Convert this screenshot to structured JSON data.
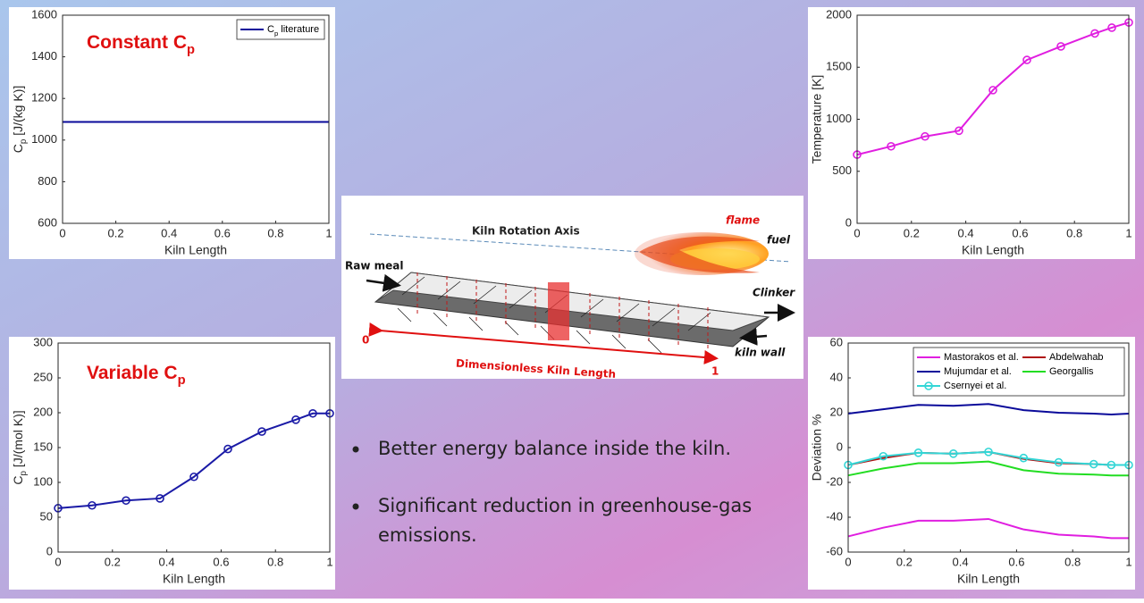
{
  "chart_data": [
    {
      "type": "line",
      "annotation": [
        "Constant C",
        "p"
      ],
      "xlabel": "Kiln Length",
      "ylabel": [
        "C",
        "p",
        " [J/(kg K)]"
      ],
      "x": [
        0,
        1
      ],
      "xlim": [
        0,
        1
      ],
      "xticks": [
        0,
        0.2,
        0.4,
        0.6,
        0.8,
        1
      ],
      "ylim": [
        600,
        1600
      ],
      "yticks": [
        600,
        800,
        1000,
        1200,
        1400,
        1600
      ],
      "legend": "northeast",
      "legend_columns": 1,
      "series": [
        {
          "name": [
            "C",
            "p",
            " literature"
          ],
          "color": "#0a0a9a",
          "marker": false,
          "values": [
            1087,
            1087
          ]
        }
      ]
    },
    {
      "type": "line",
      "xlabel": "Kiln Length",
      "ylabel": "Temperature [K]",
      "x": [
        0,
        0.125,
        0.25,
        0.375,
        0.5,
        0.625,
        0.75,
        0.875,
        0.9375,
        1
      ],
      "xlim": [
        0,
        1
      ],
      "xticks": [
        0,
        0.2,
        0.4,
        0.6,
        0.8,
        1
      ],
      "ylim": [
        0,
        2000
      ],
      "yticks": [
        0,
        500,
        1000,
        1500,
        2000
      ],
      "series": [
        {
          "color": "#e01ee0",
          "marker": true,
          "values": [
            660,
            740,
            835,
            890,
            1280,
            1570,
            1700,
            1825,
            1880,
            1930
          ]
        }
      ]
    },
    {
      "type": "line",
      "annotation": [
        "Variable C",
        "p"
      ],
      "xlabel": "Kiln Length",
      "ylabel": [
        "C",
        "p",
        " [J/(mol K)]"
      ],
      "x": [
        0,
        0.125,
        0.25,
        0.375,
        0.5,
        0.625,
        0.75,
        0.875,
        0.9375,
        1
      ],
      "xlim": [
        0,
        1
      ],
      "xticks": [
        0,
        0.2,
        0.4,
        0.6,
        0.8,
        1
      ],
      "ylim": [
        0,
        300
      ],
      "yticks": [
        0,
        50,
        100,
        150,
        200,
        250,
        300
      ],
      "series": [
        {
          "color": "#1a1aa6",
          "marker": true,
          "values": [
            63,
            67,
            74,
            77,
            108,
            148,
            173,
            190,
            199,
            199
          ]
        }
      ]
    },
    {
      "type": "line",
      "xlabel": "Kiln Length",
      "ylabel": "Deviation %",
      "x": [
        0,
        0.125,
        0.25,
        0.375,
        0.5,
        0.625,
        0.75,
        0.875,
        0.9375,
        1
      ],
      "xlim": [
        0,
        1
      ],
      "xticks": [
        0,
        0.2,
        0.4,
        0.6,
        0.8,
        1
      ],
      "ylim": [
        -60,
        60
      ],
      "yticks": [
        -60,
        -40,
        -20,
        0,
        20,
        40,
        60
      ],
      "legend": "northeast",
      "legend_columns": 2,
      "series": [
        {
          "name": "Mastorakos et al.",
          "color": "#e01ee0",
          "marker": false,
          "values": [
            -51,
            -46,
            -42,
            -42,
            -41,
            -47,
            -50,
            -51,
            -52,
            -52
          ]
        },
        {
          "name": "Abdelwahab",
          "color": "#b01010",
          "marker": false,
          "values": [
            -10,
            -6,
            -3,
            -3.5,
            -2.5,
            -6.5,
            -9,
            -9.5,
            -10,
            -10
          ]
        },
        {
          "name": "Mujumdar et al.",
          "color": "#0a0a9a",
          "marker": false,
          "values": [
            19.5,
            22,
            24.5,
            24,
            25,
            21.5,
            20,
            19.5,
            19,
            19.5
          ]
        },
        {
          "name": "Georgallis",
          "color": "#22dd22",
          "marker": false,
          "values": [
            -16,
            -12,
            -9,
            -9,
            -8,
            -13,
            -15,
            -15.5,
            -16,
            -16
          ]
        },
        {
          "name": "Csernyei et al.",
          "color": "#33d6d6",
          "marker": true,
          "values": [
            -10,
            -5,
            -3,
            -3.5,
            -2.5,
            -6,
            -8.5,
            -9.5,
            -10,
            -10
          ]
        }
      ]
    }
  ],
  "diagram": {
    "axis_label": "Kiln Rotation Axis",
    "flame": "flame",
    "fuel": "fuel",
    "raw_meal": "Raw meal",
    "clinker": "Clinker",
    "start": "0",
    "end": "1",
    "length_label": "Dimensionless Kiln Length",
    "wall": "kiln wall"
  },
  "bullets": [
    "Better energy balance inside the kiln.",
    "Significant reduction in greenhouse-gas",
    "emissions."
  ]
}
